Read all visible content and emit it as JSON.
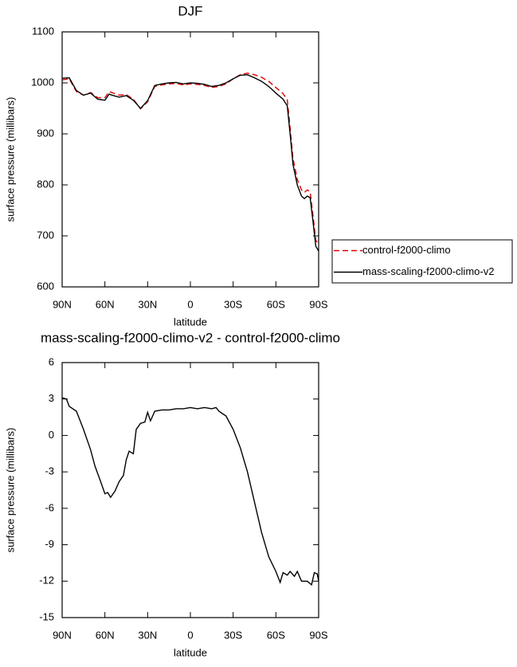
{
  "chart_data": [
    {
      "type": "line",
      "title": "DJF",
      "x_label": "latitude",
      "y_label": "surface pressure (millibars)",
      "x": [
        90,
        85,
        80,
        75,
        70,
        65,
        60,
        57,
        55,
        50,
        45,
        40,
        35,
        30,
        25,
        20,
        15,
        10,
        5,
        0,
        -5,
        -10,
        -15,
        -20,
        -25,
        -30,
        -35,
        -40,
        -45,
        -50,
        -55,
        -60,
        -65,
        -68,
        -70,
        -72,
        -75,
        -78,
        -80,
        -82,
        -84,
        -86,
        -88,
        -90
      ],
      "series": [
        {
          "name": "control-f2000-climo",
          "color": "#e00000",
          "dashed": true,
          "values": [
            1006,
            1008,
            983,
            976,
            981,
            971,
            971,
            983,
            981,
            976,
            977,
            968,
            949,
            963,
            993,
            996,
            998,
            999,
            996,
            998,
            997,
            995,
            991,
            993,
            998,
            1008,
            1016,
            1019,
            1016,
            1011,
            1003,
            991,
            979,
            967,
            912,
            852,
            811,
            790,
            785,
            790,
            787,
            742,
            692,
            682
          ]
        },
        {
          "name": "mass-scaling-f2000-climo-v2",
          "color": "#000000",
          "dashed": false,
          "values": [
            1009,
            1010,
            985,
            976,
            980,
            968,
            966,
            978,
            976,
            972,
            975,
            966,
            950,
            965,
            995,
            998,
            1000,
            1001,
            998,
            1000,
            999,
            997,
            993,
            995,
            1000,
            1008,
            1015,
            1016,
            1010,
            1003,
            993,
            980,
            968,
            955,
            900,
            840,
            800,
            778,
            773,
            778,
            775,
            730,
            680,
            670
          ]
        }
      ],
      "xlim": [
        90,
        -90
      ],
      "xticks": [
        {
          "value": 90,
          "label": "90N"
        },
        {
          "value": 60,
          "label": "60N"
        },
        {
          "value": 30,
          "label": "30N"
        },
        0,
        {
          "value": -30,
          "label": "30S"
        },
        {
          "value": -60,
          "label": "60S"
        },
        {
          "value": -90,
          "label": "90S"
        }
      ],
      "ylim": [
        600,
        1100
      ],
      "yticks": [
        600,
        700,
        800,
        900,
        1000,
        1100
      ],
      "legend": "outside-right"
    },
    {
      "type": "line",
      "title": "mass-scaling-f2000-climo-v2 - control-f2000-climo",
      "x_label": "latitude",
      "y_label": "surface pressure (millibars)",
      "x": [
        90,
        87,
        85,
        80,
        75,
        70,
        67,
        63,
        60,
        58,
        56,
        53,
        50,
        47,
        45,
        43,
        40,
        38,
        35,
        32,
        30,
        28,
        25,
        20,
        15,
        10,
        5,
        0,
        -5,
        -10,
        -15,
        -18,
        -20,
        -25,
        -30,
        -35,
        -40,
        -45,
        -50,
        -55,
        -60,
        -63,
        -65,
        -68,
        -70,
        -73,
        -75,
        -78,
        -82,
        -85,
        -87,
        -89,
        -90
      ],
      "series": [
        {
          "color": "#000000",
          "dashed": false,
          "values": [
            3.1,
            3.0,
            2.4,
            2.0,
            0.5,
            -1.2,
            -2.5,
            -3.8,
            -4.8,
            -4.7,
            -5.1,
            -4.6,
            -3.8,
            -3.3,
            -2.0,
            -1.3,
            -1.5,
            0.5,
            1.0,
            1.1,
            1.9,
            1.2,
            2.0,
            2.1,
            2.1,
            2.2,
            2.2,
            2.3,
            2.2,
            2.3,
            2.2,
            2.3,
            2.0,
            1.6,
            0.5,
            -1.0,
            -3.0,
            -5.5,
            -8.0,
            -10.0,
            -11.2,
            -12.1,
            -11.3,
            -11.5,
            -11.2,
            -11.6,
            -11.2,
            -12.0,
            -12.0,
            -12.3,
            -11.3,
            -11.4,
            -12.0
          ]
        }
      ],
      "xlim": [
        90,
        -90
      ],
      "xticks": [
        {
          "value": 90,
          "label": "90N"
        },
        {
          "value": 60,
          "label": "60N"
        },
        {
          "value": 30,
          "label": "30N"
        },
        0,
        {
          "value": -30,
          "label": "30S"
        },
        {
          "value": -60,
          "label": "60S"
        },
        {
          "value": -90,
          "label": "90S"
        }
      ],
      "ylim": [
        -15,
        6
      ],
      "yticks": [
        -15,
        -12,
        -9,
        -6,
        -3,
        0,
        3,
        6
      ]
    }
  ]
}
